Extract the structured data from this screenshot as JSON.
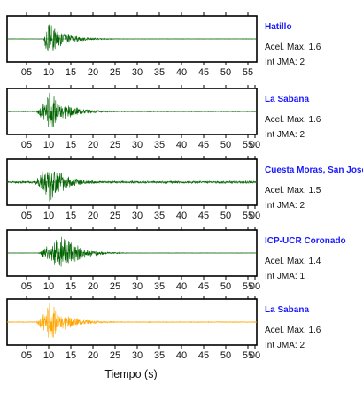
{
  "chart_data": {
    "type": "line",
    "xlabel": "Tiempo (s)",
    "xlim": [
      0,
      56
    ],
    "grid": false,
    "panels": [
      {
        "station": "Hatillo",
        "accel_label": "Acel. Max. 1.6",
        "jma_label": "Int JMA: 2",
        "color": "#006400",
        "onset_s": 8.2,
        "peak_s": 9.0,
        "duration_s": 18,
        "peak_amplitude": 1.0,
        "pre_noise": 0.01,
        "seed": 3,
        "tick_labels": [
          "05",
          "10",
          "15",
          "20",
          "25",
          "30",
          "35",
          "40",
          "45",
          "50",
          "55"
        ],
        "tick_label_side": "bottom"
      },
      {
        "station": "La Sabana",
        "accel_label": "Acel. Max. 1.6",
        "jma_label": "Int JMA: 2",
        "color": "#006400",
        "onset_s": 6.5,
        "peak_s": 9.5,
        "duration_s": 20,
        "peak_amplitude": 1.0,
        "pre_noise": 0.02,
        "seed": 7,
        "tick_labels": [
          "05",
          "10",
          "15",
          "20",
          "25",
          "30",
          "35",
          "40",
          "45",
          "50",
          "55",
          "00"
        ],
        "tick_label_side": "bottom"
      },
      {
        "station": "Cuesta Moras, San Jose",
        "accel_label": "Acel. Max. 1.5",
        "jma_label": "Int JMA: 2",
        "color": "#006400",
        "onset_s": 6.0,
        "peak_s": 9.5,
        "duration_s": 20,
        "peak_amplitude": 0.95,
        "pre_noise": 0.06,
        "seed": 11,
        "tick_labels": [
          "05",
          "10",
          "15",
          "20",
          "25",
          "30",
          "35",
          "40",
          "45",
          "50",
          "55",
          "00"
        ],
        "tick_label_side": "bottom"
      },
      {
        "station": "ICP-UCR Coronado",
        "accel_label": "Acel. Max. 1.4",
        "jma_label": "Int JMA: 1",
        "color": "#006400",
        "onset_s": 7.0,
        "peak_s": 12.5,
        "duration_s": 18,
        "peak_amplitude": 1.0,
        "pre_noise": 0.01,
        "seed": 19,
        "tick_labels": [
          "05",
          "10",
          "15",
          "20",
          "25",
          "30",
          "35",
          "40",
          "45",
          "50",
          "55",
          "00"
        ],
        "tick_label_side": "bottom"
      },
      {
        "station": "La Sabana",
        "accel_label": "Acel. Max. 1.6",
        "jma_label": "Int JMA: 2",
        "color": "#ffa500",
        "onset_s": 6.5,
        "peak_s": 9.5,
        "duration_s": 20,
        "peak_amplitude": 1.0,
        "pre_noise": 0.02,
        "seed": 7,
        "tick_labels": [
          "05",
          "10",
          "15",
          "20",
          "25",
          "30",
          "35",
          "40",
          "45",
          "50",
          "55",
          "00"
        ],
        "tick_label_side": "bottom"
      }
    ]
  }
}
